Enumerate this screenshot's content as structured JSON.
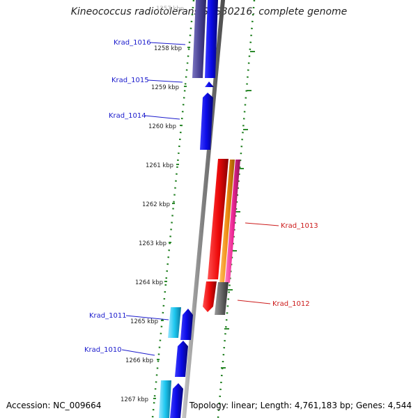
{
  "header": {
    "title": "Kineococcus radiotolerans SRS30216, complete genome"
  },
  "footer": {
    "accession": "Accession: NC_009664",
    "summary": "Topology: linear; Length: 4,761,183 bp; Genes: 4,544"
  },
  "colors": {
    "backbone": "#7f7f7f",
    "tick_dots": "#1f7f1f",
    "ticks": "#2d8a2d",
    "label_left": "#1a1acc",
    "label_right": "#cc1a1a",
    "gene_blue": "#0a0ae6",
    "gene_dark_slate": "#4b4496",
    "gene_cyan": "#1ec8f0",
    "gene_red": "#ee0a0a",
    "gene_orange": "#f08c14",
    "gene_pink": "#ee2896",
    "gene_gray": "#666666"
  },
  "scale": {
    "unit": "kbp",
    "ticks": [
      "1257 kbp",
      "1258 kbp",
      "1259 kbp",
      "1260 kbp",
      "1261 kbp",
      "1262 kbp",
      "1263 kbp",
      "1264 kbp",
      "1265 kbp",
      "1266 kbp",
      "1267 kbp"
    ]
  },
  "gene_labels_left": [
    "Krad_1016",
    "Krad_1015",
    "Krad_1014",
    "Krad_1011",
    "Krad_1010"
  ],
  "gene_labels_right": [
    "Krad_1013",
    "Krad_1012"
  ]
}
